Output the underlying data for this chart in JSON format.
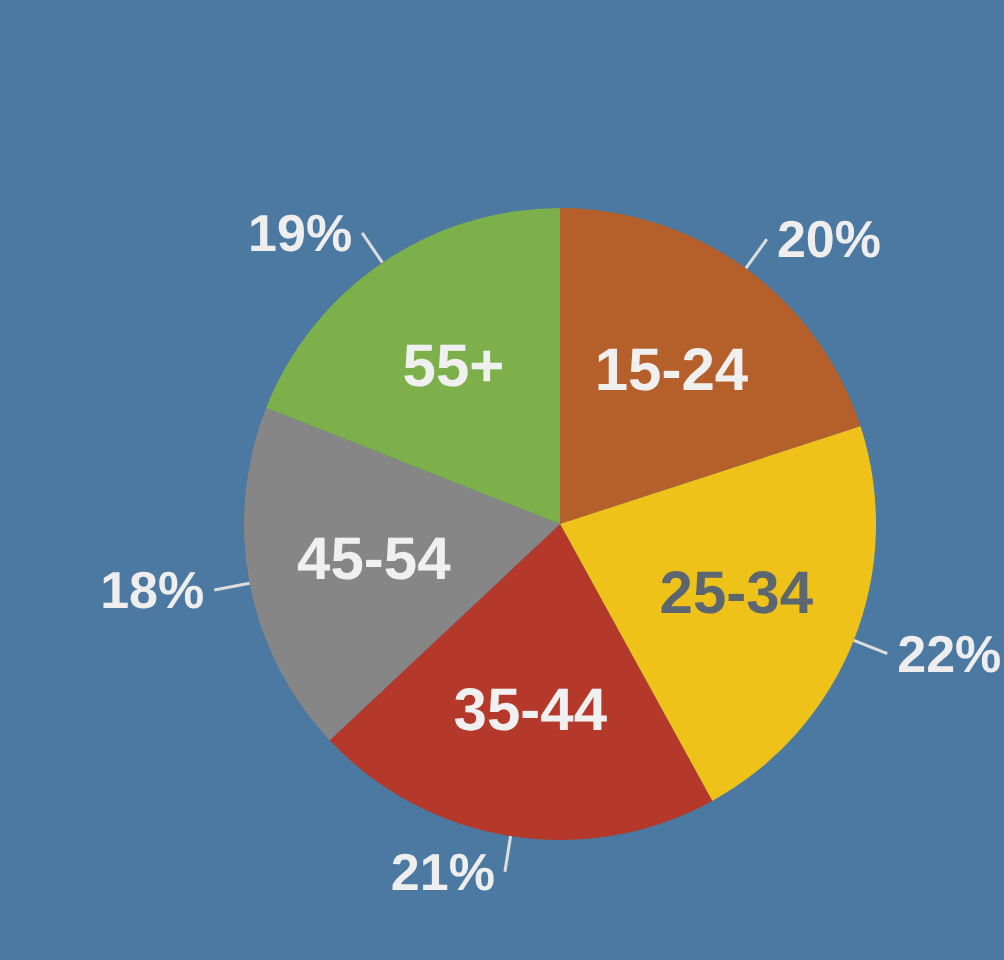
{
  "chart_data": {
    "type": "pie",
    "categories": [
      "15-24",
      "25-34",
      "35-44",
      "45-54",
      "55+"
    ],
    "values": [
      20,
      22,
      21,
      18,
      19
    ],
    "colors": [
      "#b5602b",
      "#eec218",
      "#b5392a",
      "#868686",
      "#7db04a"
    ],
    "value_labels": [
      "20%",
      "22%",
      "21%",
      "18%",
      "19%"
    ],
    "legend": false
  }
}
